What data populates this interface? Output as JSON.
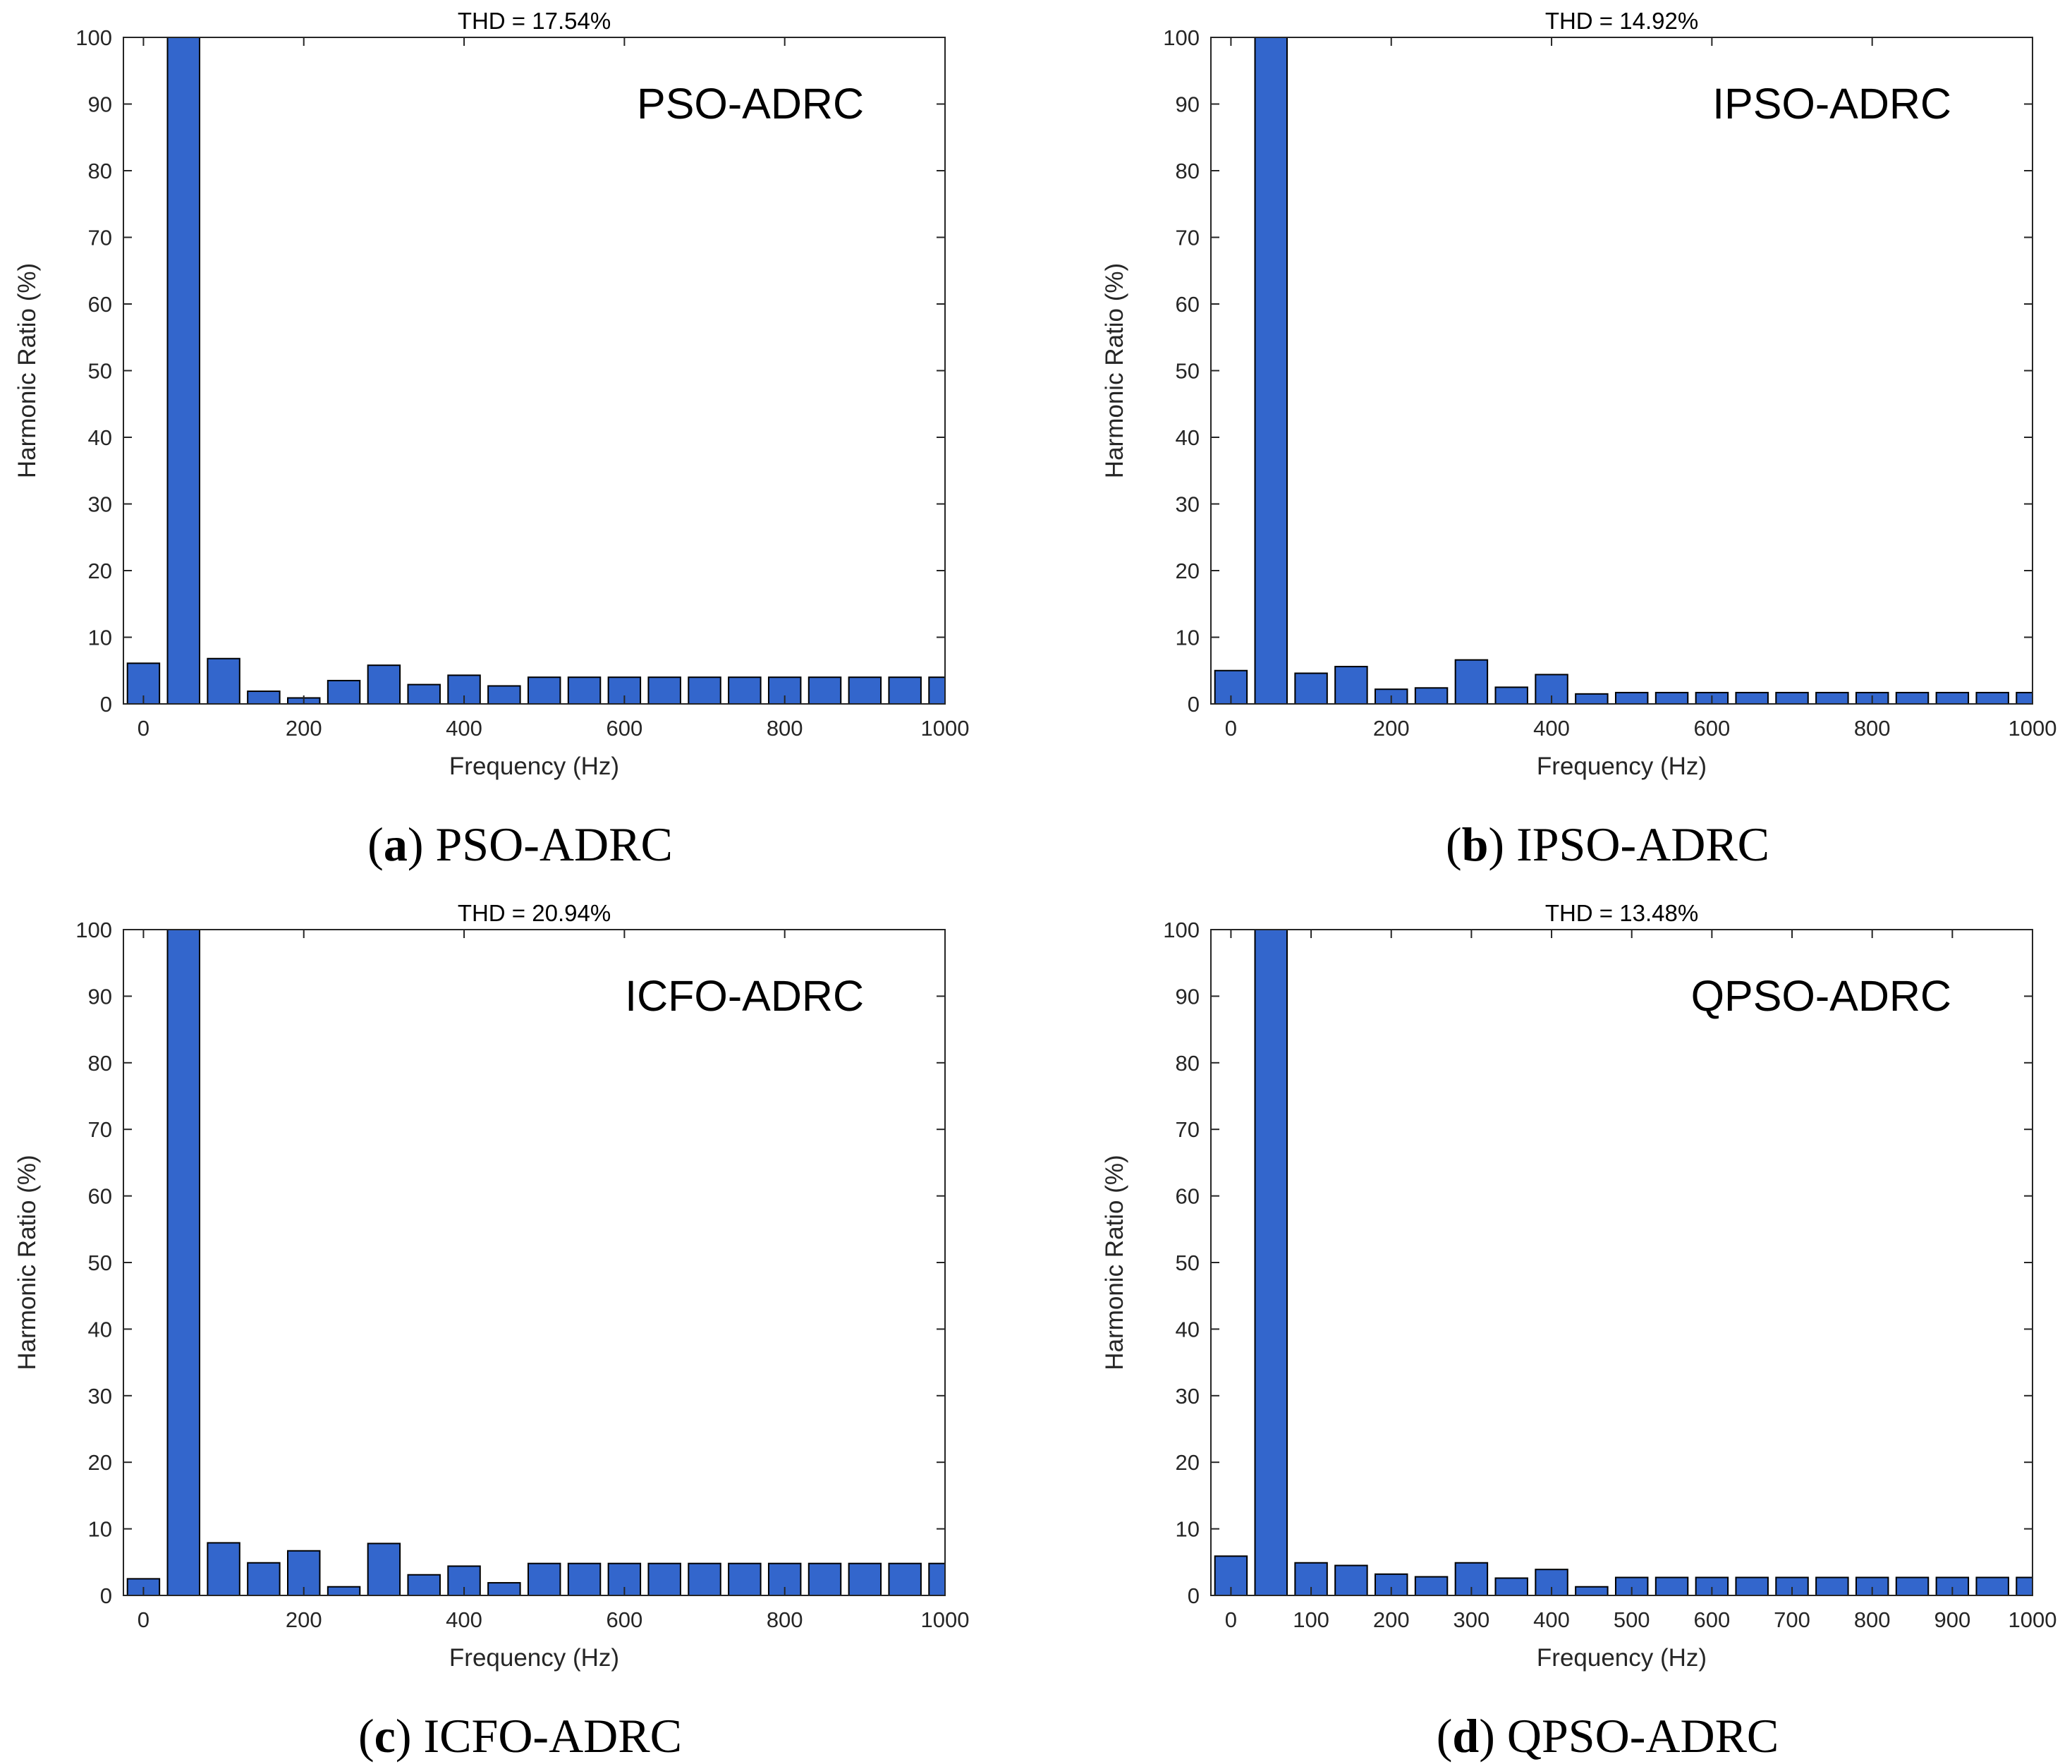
{
  "figure": {
    "bar_color": "#3366CC",
    "bar_edge_color": "#000000",
    "axis_color": "#262626"
  },
  "chart_data": [
    {
      "id": "a",
      "type": "bar",
      "title": "THD = 17.54%",
      "annotation": "PSO-ADRC",
      "caption_letter": "a",
      "caption_text": "PSO-ADRC",
      "xlabel": "Frequency (Hz)",
      "ylabel": "Harmonic Ratio (%)",
      "xlim": [
        -25,
        1000
      ],
      "ylim": [
        0,
        100
      ],
      "bar_width_hz": 40,
      "xticks": [
        0,
        200,
        400,
        600,
        800,
        1000
      ],
      "yticks": [
        0,
        10,
        20,
        30,
        40,
        50,
        60,
        70,
        80,
        90,
        100
      ],
      "x": [
        0,
        50,
        100,
        150,
        200,
        250,
        300,
        350,
        400,
        450,
        500,
        550,
        600,
        650,
        700,
        750,
        800,
        850,
        900,
        950,
        1000
      ],
      "values": [
        6.1,
        100,
        6.8,
        1.9,
        0.9,
        3.5,
        5.8,
        2.9,
        4.3,
        2.7,
        4.0,
        4.0,
        4.0,
        4.0,
        4.0,
        4.0,
        4.0,
        4.0,
        4.0,
        4.0,
        4.0
      ]
    },
    {
      "id": "b",
      "type": "bar",
      "title": "THD = 14.92%",
      "annotation": "IPSO-ADRC",
      "caption_letter": "b",
      "caption_text": "IPSO-ADRC",
      "xlabel": "Frequency (Hz)",
      "ylabel": "Harmonic Ratio (%)",
      "xlim": [
        -25,
        1000
      ],
      "ylim": [
        0,
        100
      ],
      "bar_width_hz": 40,
      "xticks": [
        0,
        200,
        400,
        600,
        800,
        1000
      ],
      "yticks": [
        0,
        10,
        20,
        30,
        40,
        50,
        60,
        70,
        80,
        90,
        100
      ],
      "x": [
        0,
        50,
        100,
        150,
        200,
        250,
        300,
        350,
        400,
        450,
        500,
        550,
        600,
        650,
        700,
        750,
        800,
        850,
        900,
        950,
        1000
      ],
      "values": [
        5.0,
        100,
        4.6,
        5.6,
        2.2,
        2.4,
        6.6,
        2.5,
        4.4,
        1.5,
        1.7,
        1.7,
        1.7,
        1.7,
        1.7,
        1.7,
        1.7,
        1.7,
        1.7,
        1.7,
        1.7
      ]
    },
    {
      "id": "c",
      "type": "bar",
      "title": "THD = 20.94%",
      "annotation": "ICFO-ADRC",
      "caption_letter": "c",
      "caption_text": "ICFO-ADRC",
      "xlabel": "Frequency (Hz)",
      "ylabel": "Harmonic Ratio (%)",
      "xlim": [
        -25,
        1000
      ],
      "ylim": [
        0,
        100
      ],
      "bar_width_hz": 40,
      "xticks": [
        0,
        200,
        400,
        600,
        800,
        1000
      ],
      "yticks": [
        0,
        10,
        20,
        30,
        40,
        50,
        60,
        70,
        80,
        90,
        100
      ],
      "x": [
        0,
        50,
        100,
        150,
        200,
        250,
        300,
        350,
        400,
        450,
        500,
        550,
        600,
        650,
        700,
        750,
        800,
        850,
        900,
        950,
        1000
      ],
      "values": [
        2.5,
        100,
        7.9,
        4.9,
        6.7,
        1.3,
        7.8,
        3.1,
        4.4,
        1.9,
        4.8,
        4.8,
        4.8,
        4.8,
        4.8,
        4.8,
        4.8,
        4.8,
        4.8,
        4.8,
        4.8
      ]
    },
    {
      "id": "d",
      "type": "bar",
      "title": "THD = 13.48%",
      "annotation": "QPSO-ADRC",
      "caption_letter": "d",
      "caption_text": "QPSO-ADRC",
      "xlabel": "Frequency (Hz)",
      "ylabel": "Harmonic Ratio (%)",
      "xlim": [
        -25,
        1000
      ],
      "ylim": [
        0,
        100
      ],
      "bar_width_hz": 40,
      "xticks": [
        0,
        100,
        200,
        300,
        400,
        500,
        600,
        700,
        800,
        900,
        1000
      ],
      "yticks": [
        0,
        10,
        20,
        30,
        40,
        50,
        60,
        70,
        80,
        90,
        100
      ],
      "x": [
        0,
        50,
        100,
        150,
        200,
        250,
        300,
        350,
        400,
        450,
        500,
        550,
        600,
        650,
        700,
        750,
        800,
        850,
        900,
        950,
        1000
      ],
      "values": [
        5.9,
        100,
        4.9,
        4.5,
        3.2,
        2.8,
        4.9,
        2.6,
        3.9,
        1.3,
        2.7,
        2.7,
        2.7,
        2.7,
        2.7,
        2.7,
        2.7,
        2.7,
        2.7,
        2.7,
        2.7
      ]
    }
  ]
}
